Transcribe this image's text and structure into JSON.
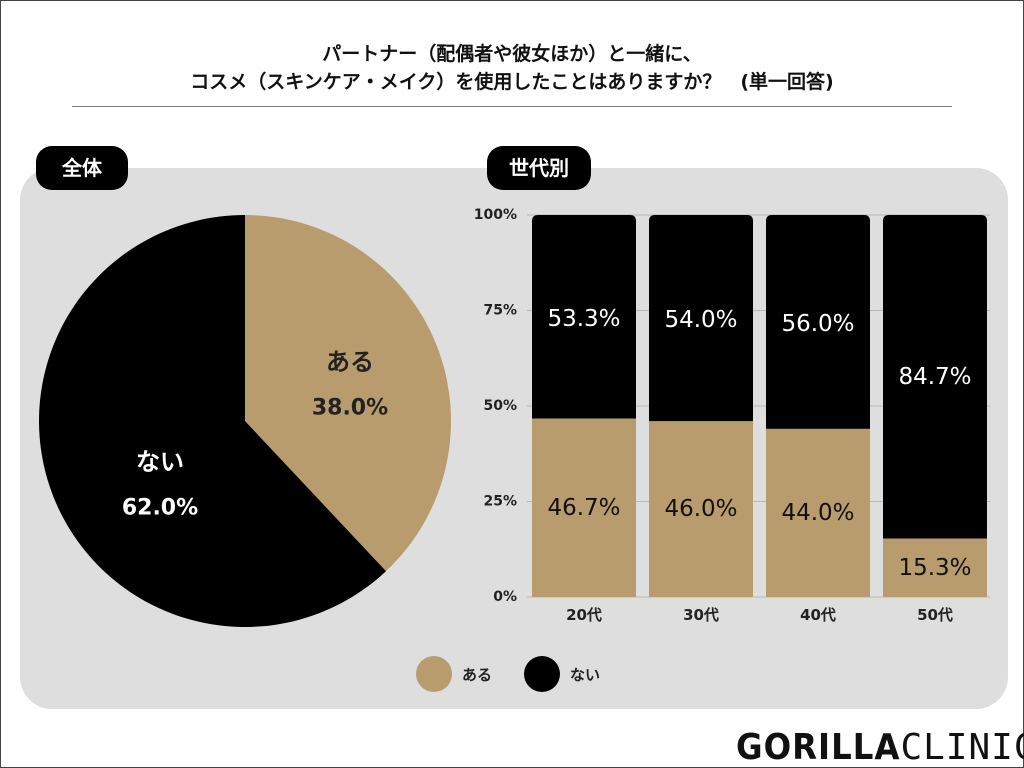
{
  "colors": {
    "aru": "#b99c6d",
    "nai": "#000000",
    "panel": "#dedede",
    "grid": "#b8b8b8"
  },
  "header": {
    "line1": "パートナー（配偶者や彼女ほか）と一緒に、",
    "line2": "コスメ（スキンケア・メイク）を使用したことはありますか？　(単一回答)"
  },
  "sections": {
    "whole": "全体",
    "generation": "世代別"
  },
  "legend": {
    "aru": "ある",
    "nai": "ない"
  },
  "brand": {
    "bold": "GORILLA",
    "light": "CLINIC"
  },
  "chart_data": [
    {
      "type": "pie",
      "title": "全体",
      "slices": [
        {
          "label": "ある",
          "value": 38.0,
          "display": "38.0%"
        },
        {
          "label": "ない",
          "value": 62.0,
          "display": "62.0%"
        }
      ]
    },
    {
      "type": "bar",
      "stacked": true,
      "title": "世代別",
      "categories": [
        "20代",
        "30代",
        "40代",
        "50代"
      ],
      "yticks": [
        "0%",
        "25%",
        "50%",
        "75%",
        "100%"
      ],
      "ylim": [
        0,
        100
      ],
      "series": [
        {
          "name": "ある",
          "values": [
            46.7,
            46.0,
            44.0,
            15.3
          ],
          "labels": [
            "46.7%",
            "46.0%",
            "44.0%",
            "15.3%"
          ]
        },
        {
          "name": "ない",
          "values": [
            53.3,
            54.0,
            56.0,
            84.7
          ],
          "labels": [
            "53.3%",
            "54.0%",
            "56.0%",
            "84.7%"
          ]
        }
      ]
    }
  ]
}
